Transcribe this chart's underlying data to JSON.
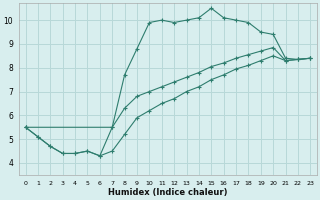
{
  "xlabel": "Humidex (Indice chaleur)",
  "background_color": "#d8eeee",
  "grid_color": "#b8d8d8",
  "line_color": "#2e7d6e",
  "xlim": [
    -0.5,
    23.5
  ],
  "ylim": [
    3.5,
    10.7
  ],
  "xticks": [
    0,
    1,
    2,
    3,
    4,
    5,
    6,
    7,
    8,
    9,
    10,
    11,
    12,
    13,
    14,
    15,
    16,
    17,
    18,
    19,
    20,
    21,
    22,
    23
  ],
  "yticks": [
    4,
    5,
    6,
    7,
    8,
    9,
    10
  ],
  "series_top_x": [
    0,
    1,
    2,
    3,
    4,
    5,
    6,
    7,
    8,
    9,
    10,
    11,
    12,
    13,
    14,
    15,
    16,
    17,
    18,
    19,
    20,
    21,
    22,
    23
  ],
  "series_top_y": [
    5.5,
    5.1,
    4.7,
    4.4,
    4.4,
    4.5,
    4.3,
    5.5,
    7.7,
    8.8,
    9.9,
    10.0,
    9.9,
    10.0,
    10.1,
    10.5,
    10.1,
    10.0,
    9.9,
    9.5,
    9.4,
    8.4,
    8.35,
    8.4
  ],
  "series_mid_x": [
    0,
    7,
    8,
    9,
    10,
    11,
    12,
    13,
    14,
    15,
    16,
    17,
    18,
    19,
    20,
    21,
    22,
    23
  ],
  "series_mid_y": [
    5.5,
    5.5,
    6.3,
    6.8,
    7.0,
    7.2,
    7.4,
    7.6,
    7.8,
    8.05,
    8.2,
    8.4,
    8.55,
    8.7,
    8.85,
    8.3,
    8.35,
    8.4
  ],
  "series_bot_x": [
    0,
    1,
    2,
    3,
    4,
    5,
    6,
    7,
    8,
    9,
    10,
    11,
    12,
    13,
    14,
    15,
    16,
    17,
    18,
    19,
    20,
    21,
    22,
    23
  ],
  "series_bot_y": [
    5.5,
    5.1,
    4.7,
    4.4,
    4.4,
    4.5,
    4.3,
    4.5,
    5.2,
    5.9,
    6.2,
    6.5,
    6.7,
    7.0,
    7.2,
    7.5,
    7.7,
    7.95,
    8.1,
    8.3,
    8.5,
    8.3,
    8.35,
    8.4
  ]
}
